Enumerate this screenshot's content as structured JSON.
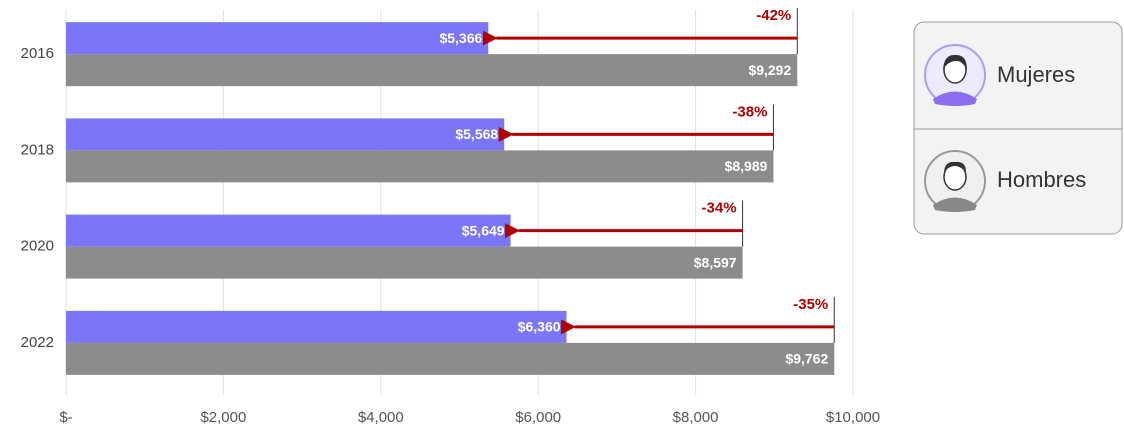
{
  "chart_data": {
    "type": "bar",
    "orientation": "horizontal",
    "categories": [
      "2016",
      "2018",
      "2020",
      "2022"
    ],
    "series": [
      {
        "name": "Mujeres",
        "color": "#7b76f7",
        "values": [
          5366,
          5568,
          5649,
          6360
        ],
        "value_labels": [
          "$5,366",
          "$5,568",
          "$5,649",
          "$6,360"
        ]
      },
      {
        "name": "Hombres",
        "color": "#8c8c8c",
        "values": [
          9292,
          8989,
          8597,
          9762
        ],
        "value_labels": [
          "$9,292",
          "$8,989",
          "$8,597",
          "$9,762"
        ]
      }
    ],
    "annotations": [
      "-42%",
      "-38%",
      "-34%",
      "-35%"
    ],
    "annotation_color": "#b00000",
    "xlim": [
      0,
      10000
    ],
    "xticks": [
      {
        "value": 0,
        "label": "$-"
      },
      {
        "value": 2000,
        "label": "$2,000"
      },
      {
        "value": 4000,
        "label": "$4,000"
      },
      {
        "value": 6000,
        "label": "$6,000"
      },
      {
        "value": 8000,
        "label": "$8,000"
      },
      {
        "value": 10000,
        "label": "$10,000"
      }
    ],
    "grid": true
  }
}
